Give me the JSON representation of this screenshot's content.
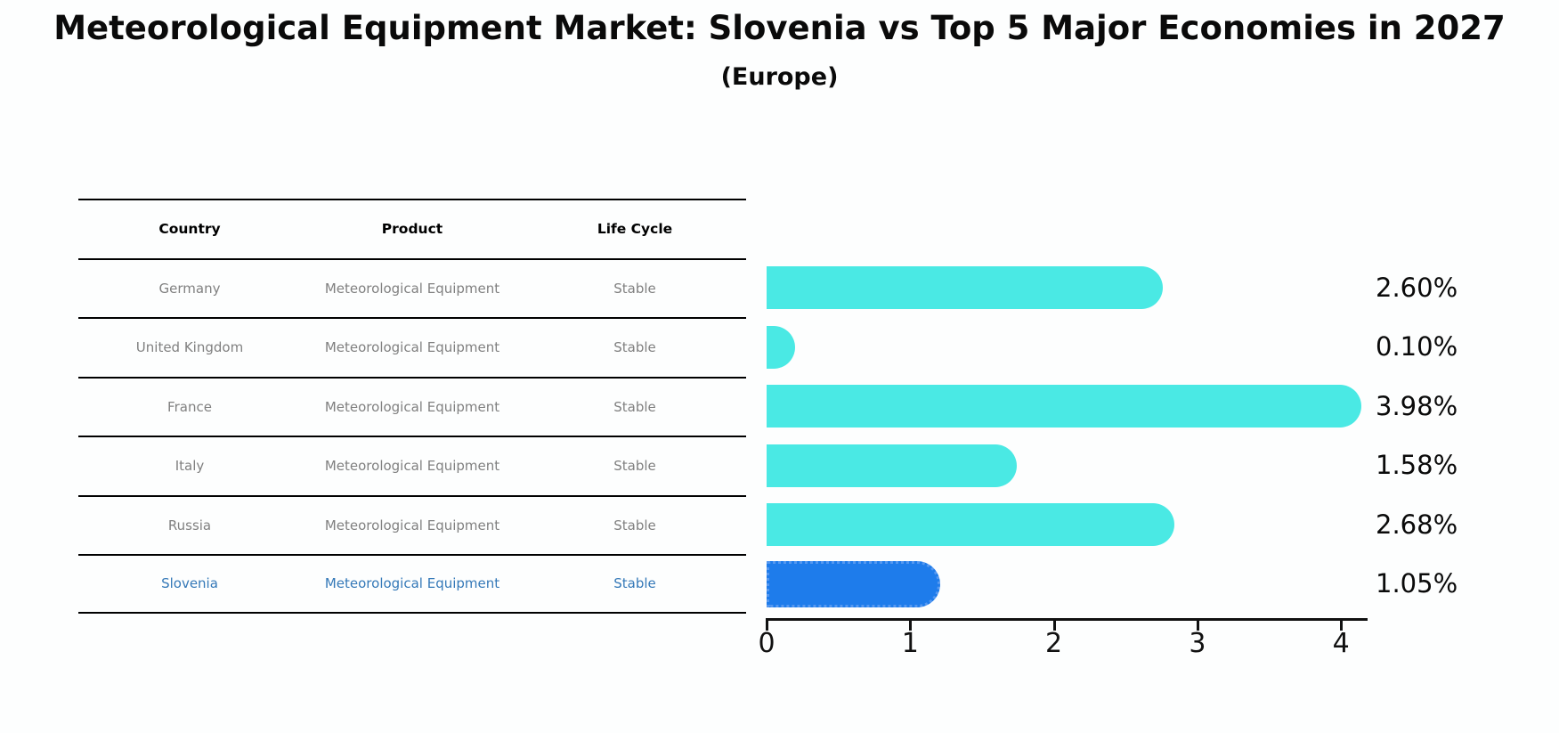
{
  "chart_data": {
    "type": "bar",
    "orientation": "horizontal",
    "title": "Meteorological Equipment Market: Slovenia vs Top 5 Major Economies in 2027",
    "subtitle": "(Europe)",
    "categories": [
      "Germany",
      "United Kingdom",
      "France",
      "Italy",
      "Russia",
      "Slovenia"
    ],
    "values": [
      2.6,
      0.1,
      3.98,
      1.58,
      2.68,
      1.05
    ],
    "value_labels": [
      "2.60%",
      "0.10%",
      "3.98%",
      "1.58%",
      "2.68%",
      "1.05%"
    ],
    "xlim": [
      0,
      4.17
    ],
    "x_ticks": [
      0,
      1,
      2,
      3,
      4
    ],
    "x_tick_labels": [
      "0",
      "1",
      "2",
      "3",
      "4"
    ],
    "grid": false,
    "legend": "none",
    "bar_color": "#4ae9e4",
    "highlight_bar_color": "#1e7ceb",
    "highlight_index": 5
  },
  "table": {
    "headers": [
      "Country",
      "Product",
      "Life Cycle"
    ],
    "rows": [
      {
        "country": "Germany",
        "product": "Meteorological Equipment",
        "life_cycle": "Stable",
        "highlighted": false
      },
      {
        "country": "United Kingdom",
        "product": "Meteorological Equipment",
        "life_cycle": "Stable",
        "highlighted": false
      },
      {
        "country": "France",
        "product": "Meteorological Equipment",
        "life_cycle": "Stable",
        "highlighted": false
      },
      {
        "country": "Italy",
        "product": "Meteorological Equipment",
        "life_cycle": "Stable",
        "highlighted": false
      },
      {
        "country": "Russia",
        "product": "Meteorological Equipment",
        "life_cycle": "Stable",
        "highlighted": false
      },
      {
        "country": "Slovenia",
        "product": "Meteorological Equipment",
        "life_cycle": "Stable",
        "highlighted": true
      }
    ]
  },
  "colors": {
    "bar_cyan": "#4ae9e4",
    "bar_blue": "#1e7ceb",
    "bar_blue_dot_border": "#5598f0",
    "table_text_gray": "#808080",
    "highlight_text_blue": "#3579b8",
    "axis_black": "#111111"
  }
}
